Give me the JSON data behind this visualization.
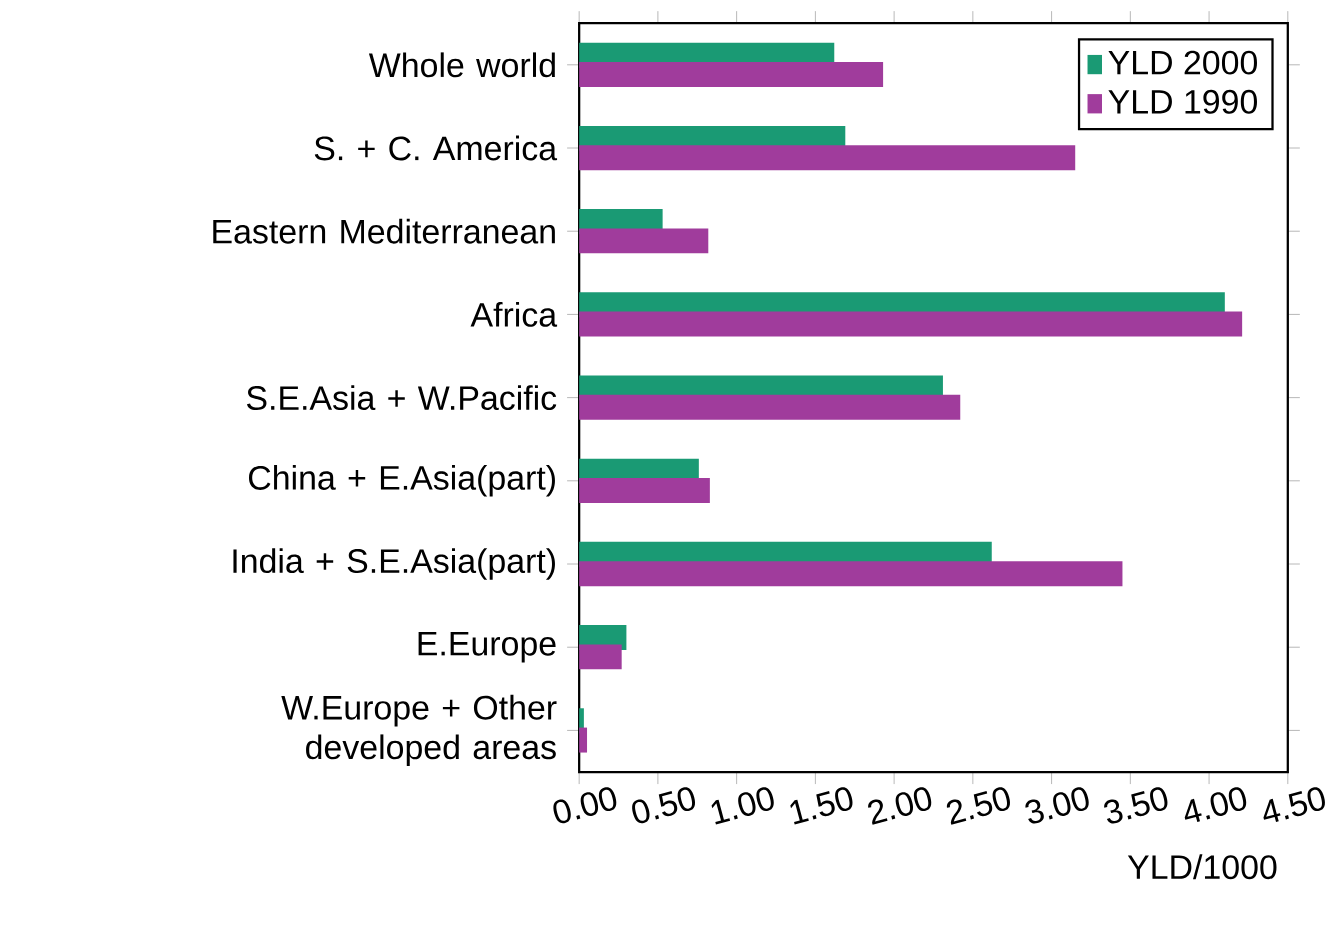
{
  "chart_data": {
    "type": "bar",
    "orientation": "horizontal",
    "xlabel": "YLD/1000",
    "categories": [
      "Whole world",
      "S. + C. America",
      "Eastern Mediterranean",
      "Africa",
      "S.E.Asia + W.Pacific",
      "China + E.Asia(part)",
      "India + S.E.Asia(part)",
      "E.Europe",
      "W.Europe + Other developed areas"
    ],
    "series": [
      {
        "name": "YLD 2000",
        "color": "#1a9a74",
        "values": [
          1.62,
          1.69,
          0.53,
          4.1,
          2.31,
          0.76,
          2.62,
          0.3,
          0.03
        ]
      },
      {
        "name": "YLD 1990",
        "color": "#a03c9c",
        "values": [
          1.93,
          3.15,
          0.82,
          4.21,
          2.42,
          0.83,
          3.45,
          0.27,
          0.05
        ]
      }
    ],
    "xlim": [
      0,
      4.5
    ],
    "xticks": [
      {
        "value": 0,
        "label": "0.00"
      },
      {
        "value": 0.5,
        "label": "0.50"
      },
      {
        "value": 1,
        "label": "1.00"
      },
      {
        "value": 1.5,
        "label": "1.50"
      },
      {
        "value": 2,
        "label": "2.00"
      },
      {
        "value": 2.5,
        "label": "2.50"
      },
      {
        "value": 3,
        "label": "3.00"
      },
      {
        "value": 3.5,
        "label": "3.50"
      },
      {
        "value": 4,
        "label": "4.00"
      },
      {
        "value": 4.5,
        "label": "4.50"
      }
    ],
    "grid": false,
    "legend": "top right"
  }
}
